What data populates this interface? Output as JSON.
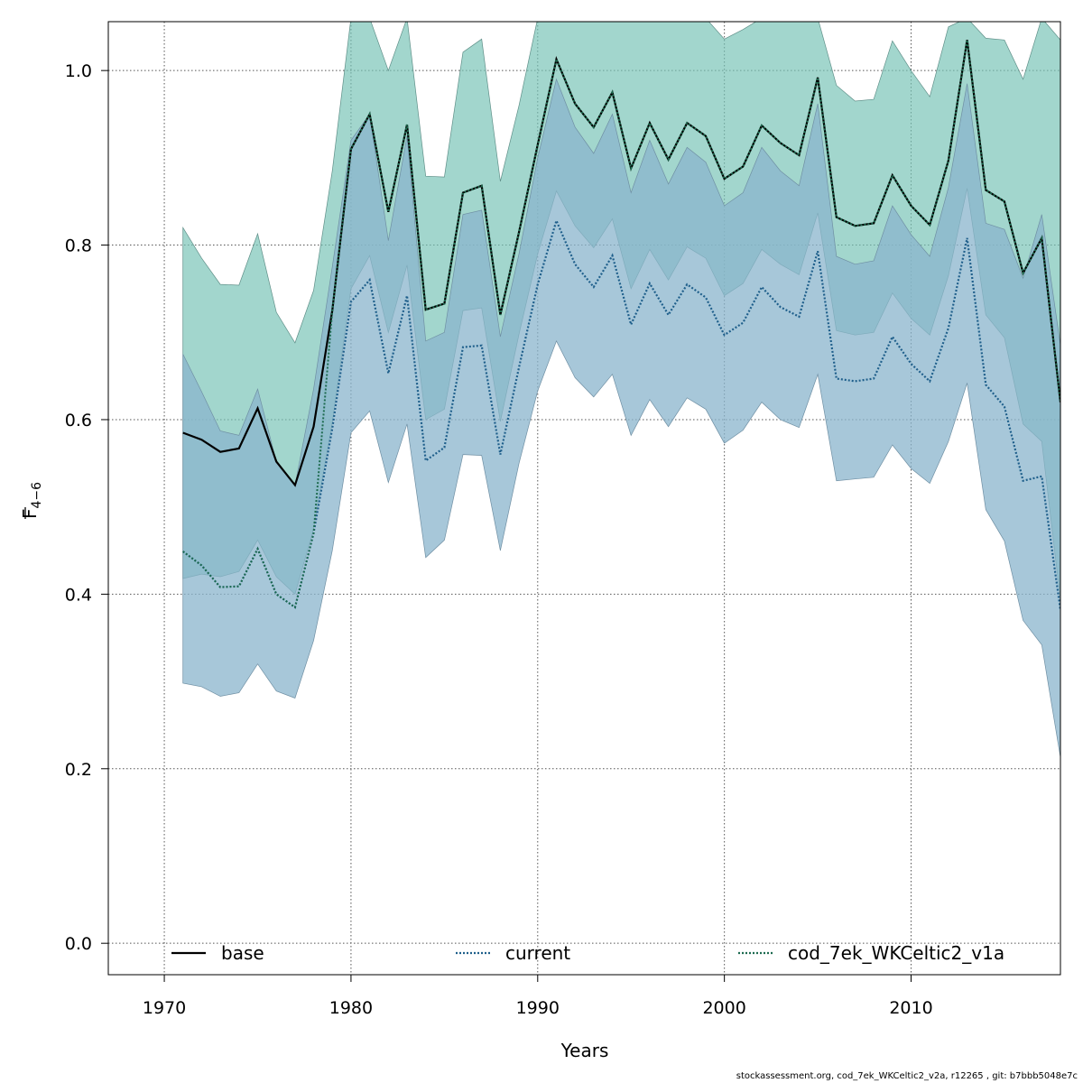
{
  "chart_data": {
    "type": "area",
    "xlabel": "Years",
    "ylabel_main": "F",
    "ylabel_sub": "4−6",
    "xlim": [
      1967,
      2018
    ],
    "ylim": [
      -0.036,
      1.056
    ],
    "x_ticks": [
      1970,
      1980,
      1990,
      2000,
      2010
    ],
    "y_ticks": [
      0.0,
      0.2,
      0.4,
      0.6,
      0.8,
      1.0
    ],
    "y_tick_labels": [
      "0.0",
      "0.2",
      "0.4",
      "0.6",
      "0.8",
      "1.0"
    ],
    "grid": true,
    "legend_position": "bottom",
    "colors": {
      "band_base": "#76c2b6",
      "band_current": "#8ab4cc",
      "line_base": "#000000",
      "line_current": "#1f5f8b",
      "line_run": "#1e6b50"
    },
    "years": [
      1971,
      1972,
      1973,
      1974,
      1975,
      1976,
      1977,
      1978,
      1979,
      1980,
      1981,
      1982,
      1983,
      1984,
      1985,
      1986,
      1987,
      1988,
      1989,
      1990,
      1991,
      1992,
      1993,
      1994,
      1995,
      1996,
      1997,
      1998,
      1999,
      2000,
      2001,
      2002,
      2003,
      2004,
      2005,
      2006,
      2007,
      2008,
      2009,
      2010,
      2011,
      2012,
      2013,
      2014,
      2015,
      2016,
      2017,
      2018
    ],
    "series": [
      {
        "name": "base",
        "values": [
          0.585,
          0.577,
          0.563,
          0.567,
          0.613,
          0.552,
          0.525,
          0.592,
          0.725,
          0.91,
          0.95,
          0.838,
          0.938,
          0.726,
          0.733,
          0.86,
          0.868,
          0.72,
          0.815,
          0.915,
          1.013,
          0.962,
          0.935,
          0.975,
          0.888,
          0.94,
          0.898,
          0.94,
          0.925,
          0.876,
          0.89,
          0.937,
          0.917,
          0.903,
          0.992,
          0.832,
          0.822,
          0.825,
          0.88,
          0.845,
          0.823,
          0.897,
          1.035,
          0.863,
          0.85,
          0.768,
          0.808,
          0.62
        ],
        "lower": [
          0.418,
          0.423,
          0.42,
          0.426,
          0.462,
          0.42,
          0.4,
          0.475,
          0.597,
          0.75,
          0.788,
          0.7,
          0.777,
          0.6,
          0.612,
          0.725,
          0.728,
          0.598,
          0.698,
          0.79,
          0.862,
          0.822,
          0.797,
          0.83,
          0.75,
          0.795,
          0.76,
          0.798,
          0.785,
          0.742,
          0.756,
          0.795,
          0.778,
          0.766,
          0.837,
          0.702,
          0.697,
          0.7,
          0.745,
          0.716,
          0.697,
          0.765,
          0.865,
          0.72,
          0.694,
          0.595,
          0.575,
          0.393
        ],
        "upper": [
          0.82,
          0.785,
          0.755,
          0.754,
          0.813,
          0.723,
          0.688,
          0.748,
          0.885,
          1.06,
          1.06,
          1.0,
          1.06,
          0.879,
          0.878,
          1.021,
          1.036,
          0.873,
          0.96,
          1.06,
          1.06,
          1.06,
          1.06,
          1.06,
          1.06,
          1.06,
          1.06,
          1.06,
          1.06,
          1.036,
          1.047,
          1.06,
          1.06,
          1.06,
          1.06,
          0.983,
          0.965,
          0.967,
          1.034,
          1.0,
          0.97,
          1.05,
          1.06,
          1.037,
          1.035,
          0.99,
          1.06,
          1.035
        ]
      },
      {
        "name": "current",
        "values": [
          0.449,
          0.433,
          0.408,
          0.409,
          0.452,
          0.4,
          0.385,
          0.47,
          0.59,
          0.735,
          0.76,
          0.653,
          0.742,
          0.553,
          0.568,
          0.683,
          0.685,
          0.56,
          0.66,
          0.755,
          0.828,
          0.778,
          0.752,
          0.788,
          0.709,
          0.756,
          0.72,
          0.755,
          0.74,
          0.697,
          0.711,
          0.752,
          0.729,
          0.718,
          0.793,
          0.647,
          0.644,
          0.647,
          0.695,
          0.664,
          0.644,
          0.705,
          0.808,
          0.64,
          0.615,
          0.53,
          0.535,
          0.382
        ],
        "lower": [
          0.298,
          0.294,
          0.283,
          0.287,
          0.32,
          0.289,
          0.281,
          0.347,
          0.45,
          0.585,
          0.61,
          0.528,
          0.595,
          0.442,
          0.462,
          0.56,
          0.559,
          0.45,
          0.55,
          0.633,
          0.69,
          0.648,
          0.626,
          0.652,
          0.582,
          0.623,
          0.592,
          0.625,
          0.612,
          0.573,
          0.588,
          0.62,
          0.6,
          0.591,
          0.652,
          0.53,
          0.532,
          0.534,
          0.571,
          0.544,
          0.527,
          0.575,
          0.642,
          0.497,
          0.461,
          0.37,
          0.342,
          0.213
        ],
        "upper": [
          0.675,
          0.632,
          0.587,
          0.582,
          0.635,
          0.552,
          0.525,
          0.635,
          0.775,
          0.92,
          0.95,
          0.805,
          0.925,
          0.69,
          0.7,
          0.835,
          0.84,
          0.695,
          0.79,
          0.9,
          0.99,
          0.935,
          0.905,
          0.95,
          0.86,
          0.92,
          0.87,
          0.912,
          0.895,
          0.845,
          0.86,
          0.912,
          0.885,
          0.868,
          0.962,
          0.787,
          0.778,
          0.782,
          0.845,
          0.812,
          0.787,
          0.866,
          0.985,
          0.825,
          0.818,
          0.762,
          0.835,
          0.685
        ]
      },
      {
        "name": "cod_7ek_WKCeltic2_v1a",
        "values": [
          0.449,
          0.433,
          0.408,
          0.409,
          0.452,
          0.4,
          0.385,
          0.47,
          0.725,
          0.91,
          0.95,
          0.838,
          0.938,
          0.726,
          0.733,
          0.86,
          0.868,
          0.72,
          0.815,
          0.915,
          1.013,
          0.962,
          0.935,
          0.975,
          0.888,
          0.94,
          0.898,
          0.94,
          0.925,
          0.876,
          0.89,
          0.937,
          0.917,
          0.903,
          0.992,
          0.832,
          0.822,
          0.825,
          0.88,
          0.845,
          0.823,
          0.897,
          1.035,
          0.863,
          0.85,
          0.768,
          0.808,
          0.62
        ]
      }
    ],
    "legend": [
      "base",
      "current",
      "cod_7ek_WKCeltic2_v1a"
    ]
  },
  "footer": "stockassessment.org, cod_7ek_WKCeltic2_v2a, r12265 , git: b7bbb5048e7c"
}
